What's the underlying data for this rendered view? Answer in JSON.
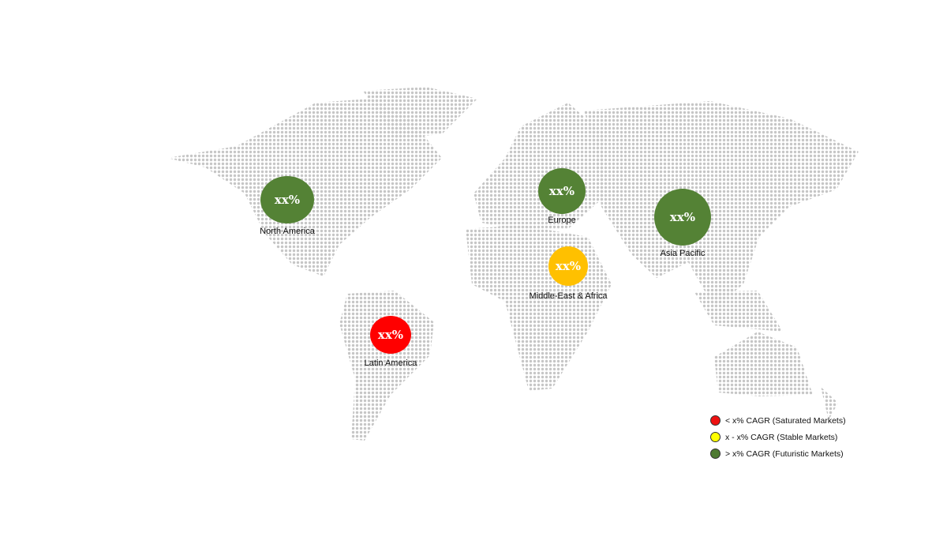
{
  "regions": [
    {
      "name": "North America",
      "value": "xx%",
      "category": "futuristic"
    },
    {
      "name": "Europe",
      "value": "xx%",
      "category": "futuristic"
    },
    {
      "name": "Asia Pacific",
      "value": "xx%",
      "category": "futuristic"
    },
    {
      "name": "Middle-East & Africa",
      "value": "xx%",
      "category": "stable"
    },
    {
      "name": "Latin America",
      "value": "xx%",
      "category": "saturated"
    }
  ],
  "legend": [
    {
      "label": "< x% CAGR (Saturated Markets)",
      "color": "#ee1111"
    },
    {
      "label": "x - x% CAGR (Stable Markets)",
      "color": "#ffff00"
    },
    {
      "label": "> x% CAGR (Futuristic Markets)",
      "color": "#4e7a32"
    }
  ],
  "colors": {
    "futuristic": "#548235",
    "stable": "#ffc000",
    "saturated": "#ff0000",
    "land_dots": "#c8c8c8"
  }
}
